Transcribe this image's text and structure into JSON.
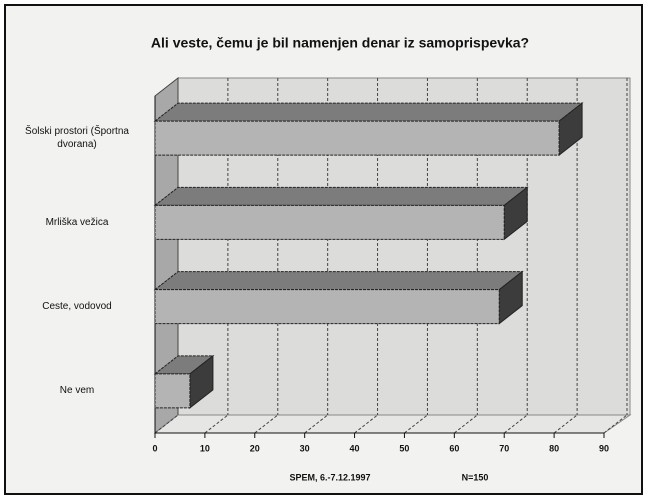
{
  "chart_data": {
    "type": "bar3d_horizontal",
    "title": "Ali veste, čemu je bil namenjen denar iz samoprispevka?",
    "categories": [
      "Šolski prostori (Športna dvorana)",
      "Mrliška vežica",
      "Ceste, vodovod",
      "Ne vem"
    ],
    "values": [
      81,
      70,
      69,
      7
    ],
    "color": "#b4b4b4",
    "xlim": [
      0,
      90
    ],
    "xticks": [
      0,
      10,
      20,
      30,
      40,
      50,
      60,
      70,
      80,
      90
    ],
    "grid": true,
    "annotations": [
      "SPEM, 6.-7.12.1997",
      "N=150"
    ]
  }
}
